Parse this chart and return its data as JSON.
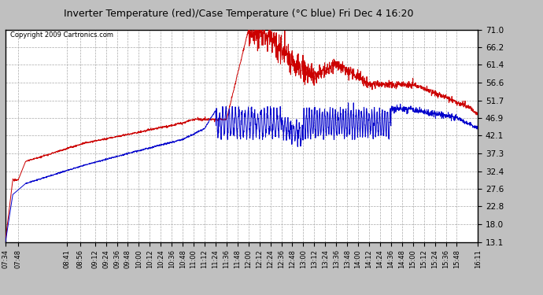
{
  "title": "Inverter Temperature (red)/Case Temperature (°C blue) Fri Dec 4 16:20",
  "copyright": "Copyright 2009 Cartronics.com",
  "y_ticks": [
    13.1,
    18.0,
    22.8,
    27.6,
    32.4,
    37.3,
    42.1,
    46.9,
    51.7,
    56.6,
    61.4,
    66.2,
    71.0
  ],
  "ylim": [
    13.1,
    71.0
  ],
  "background_color": "#c0c0c0",
  "plot_background": "#ffffff",
  "red_color": "#cc0000",
  "blue_color": "#0000cc",
  "grid_color": "#aaaaaa",
  "x_labels": [
    "07:34",
    "07:48",
    "08:41",
    "08:56",
    "09:12",
    "09:24",
    "09:36",
    "09:48",
    "10:00",
    "10:12",
    "10:24",
    "10:36",
    "10:48",
    "11:00",
    "11:12",
    "11:24",
    "11:36",
    "11:48",
    "12:00",
    "12:12",
    "12:24",
    "12:36",
    "12:48",
    "13:00",
    "13:12",
    "13:24",
    "13:36",
    "13:48",
    "14:00",
    "14:12",
    "14:24",
    "14:36",
    "14:48",
    "15:00",
    "15:12",
    "15:24",
    "15:36",
    "15:48",
    "16:11"
  ]
}
